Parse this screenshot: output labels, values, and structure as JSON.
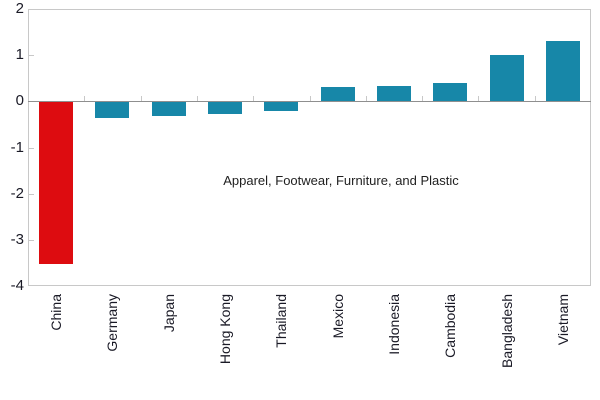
{
  "chart_data": {
    "type": "bar",
    "title": "",
    "xlabel": "",
    "ylabel": "",
    "annotation": "Apparel, Footwear, Furniture, and Plastic",
    "categories": [
      "China",
      "Germany",
      "Japan",
      "Hong Kong",
      "Thailand",
      "Mexico",
      "Indonesia",
      "Cambodia",
      "Bangladesh",
      "Vietnam"
    ],
    "values": [
      -3.5,
      -0.35,
      -0.3,
      -0.25,
      -0.2,
      0.3,
      0.33,
      0.4,
      1.0,
      1.3
    ],
    "bar_colors": [
      "#dd0c10",
      "#1787a8",
      "#1787a8",
      "#1787a8",
      "#1787a8",
      "#1787a8",
      "#1787a8",
      "#1787a8",
      "#1787a8",
      "#1787a8"
    ],
    "ylim": [
      -4,
      2
    ],
    "yticks": [
      2,
      1,
      0,
      -1,
      -2,
      -3,
      -4
    ],
    "grid": false,
    "legend_position": "none"
  },
  "colors": {
    "highlight_bar": "#dd0c10",
    "default_bar": "#1787a8",
    "frame": "#c8c8c8",
    "zero_line": "#8f8f8f",
    "axis_text": "#1a1a26"
  }
}
